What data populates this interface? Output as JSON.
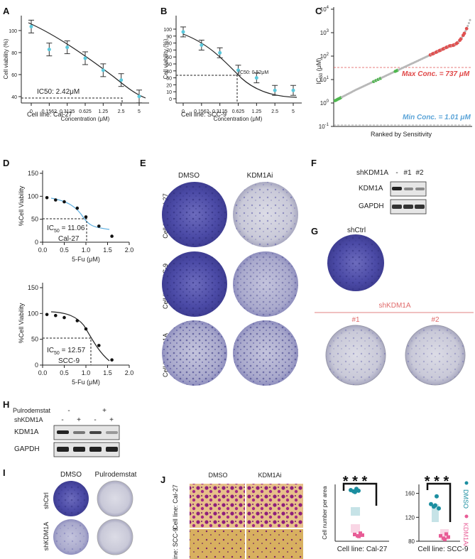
{
  "panels": {
    "A": {
      "label": "A",
      "ylabel": "Cell viability (%)",
      "xlabel": "Concentration (μM)",
      "yticks": [
        "40",
        "60",
        "80",
        "100"
      ],
      "xticks": [
        "0",
        "0.1562",
        "0.3125",
        "0.625",
        "1.25",
        "2.5",
        "5"
      ],
      "ic50": "IC50: 2.42μM",
      "cell_line": "Cell line: Cal-27"
    },
    "B": {
      "label": "B",
      "ylabel": "Cell viability (%)",
      "xlabel": "Concentration (μM)",
      "yticks": [
        "0",
        "10",
        "20",
        "30",
        "40",
        "50",
        "60",
        "70",
        "80",
        "90",
        "100"
      ],
      "xticks": [
        "0",
        "0.1562",
        "0.3125",
        "0.625",
        "1.25",
        "2.5",
        "5"
      ],
      "ic50": "IC50: 0.52μM",
      "cell_line": "Cell line: SCC-9"
    },
    "C": {
      "label": "C",
      "ylabel": "IC50 (μM)",
      "xlabel": "Ranked by Sensitivity",
      "yticks": [
        "10^-1",
        "10^0",
        "10^1",
        "10^2",
        "10^3",
        "10^4"
      ],
      "max_conc": "Max Conc. = 737 μM",
      "min_conc": "Min Conc. = 1.01 μM"
    },
    "D": {
      "label": "D",
      "ylabel": "%Cell Viability",
      "xlabel": "5-Fu (μM)",
      "yticks": [
        "0",
        "50",
        "100",
        "150"
      ],
      "xticks": [
        "0.0",
        "0.5",
        "1.0",
        "1.5",
        "2.0"
      ],
      "top": {
        "ic50_prefix": "IC",
        "ic50_sub": "50",
        "ic50_value": " = 11.06",
        "cell_line": "Cal-27"
      },
      "bottom": {
        "ic50_prefix": "IC",
        "ic50_sub": "50",
        "ic50_value": " = 12.57",
        "cell_line": "SCC-9"
      }
    },
    "E": {
      "label": "E",
      "col1": "DMSO",
      "col2": "KDM1Ai",
      "rows": [
        "Cell line: Cal-27",
        "Cell line: SCC-9",
        "Cell line: Het1A"
      ]
    },
    "F": {
      "label": "F",
      "header": "shKDM1A",
      "lanes": [
        "-",
        "#1",
        "#2"
      ],
      "bands": [
        "KDM1A",
        "GAPDH"
      ]
    },
    "G": {
      "label": "G",
      "ctrl": "shCtrl",
      "group": "shKDM1A",
      "sub1": "#1",
      "sub2": "#2"
    },
    "H": {
      "label": "H",
      "row1": "Pulrodemstat",
      "row2": "shKDM1A",
      "row1_vals": [
        "-",
        "+"
      ],
      "row2_vals": [
        "-",
        "+",
        "-",
        "+"
      ],
      "bands": [
        "KDM1A",
        "GAPDH"
      ]
    },
    "I": {
      "label": "I",
      "col1": "DMSO",
      "col2": "Pulrodemstat",
      "rows": [
        "shCtrl",
        "shKDM1A"
      ]
    },
    "J": {
      "label": "J",
      "col1": "DMSO",
      "col2": "KDM1Ai",
      "rows": [
        "Cell line: Cal-27",
        "Cell line: SCC-9"
      ],
      "ylabel": "Cell number per area",
      "stars": "* * *",
      "chart1_title": "Cell line: Cal-27",
      "chart2_title": "Cell line: SCC-9",
      "chart2_yticks": [
        "80",
        "120",
        "160"
      ],
      "legend": [
        "DMSO",
        "KDM1Ai"
      ]
    }
  },
  "chart_data": [
    {
      "type": "line",
      "title": "A",
      "x": [
        "0",
        "0.1562",
        "0.3125",
        "0.625",
        "1.25",
        "2.5",
        "5"
      ],
      "values": [
        100,
        79,
        81,
        71,
        60,
        51,
        36
      ],
      "ylim": [
        30,
        110
      ],
      "ic50": 2.42
    },
    {
      "type": "line",
      "title": "B",
      "x": [
        "0",
        "0.1562",
        "0.3125",
        "0.625",
        "1.25",
        "2.5",
        "5"
      ],
      "values": [
        96,
        77,
        66,
        41,
        30,
        12,
        12
      ],
      "ylim": [
        0,
        110
      ],
      "ic50": 0.52
    },
    {
      "type": "scatter",
      "title": "C",
      "ylim_log10": [
        -1,
        4
      ],
      "max_conc": 737,
      "min_conc": 1.01
    },
    {
      "type": "line",
      "title": "D-Cal-27",
      "x": [
        0.1,
        0.3,
        0.5,
        0.8,
        1.0,
        1.3,
        1.6
      ],
      "values": [
        97,
        92,
        88,
        74,
        55,
        35,
        13
      ],
      "ylim": [
        0,
        150
      ]
    },
    {
      "type": "line",
      "title": "D-SCC-9",
      "x": [
        0.1,
        0.3,
        0.5,
        0.8,
        1.0,
        1.3,
        1.6
      ],
      "values": [
        98,
        96,
        92,
        86,
        70,
        38,
        10
      ],
      "ylim": [
        0,
        150
      ]
    },
    {
      "type": "scatter",
      "title": "J-Cal-27",
      "series": [
        {
          "name": "DMSO",
          "values": [
            80,
            78,
            82,
            79,
            77
          ]
        },
        {
          "name": "KDM1Ai",
          "values": [
            30,
            28,
            32,
            29,
            27
          ]
        }
      ]
    },
    {
      "type": "scatter",
      "title": "J-SCC-9",
      "ylim": [
        80,
        175
      ],
      "series": [
        {
          "name": "DMSO",
          "values": [
            142,
            138,
            155,
            135,
            140
          ]
        },
        {
          "name": "KDM1Ai",
          "values": [
            92,
            88,
            95,
            90,
            86
          ]
        }
      ]
    }
  ]
}
